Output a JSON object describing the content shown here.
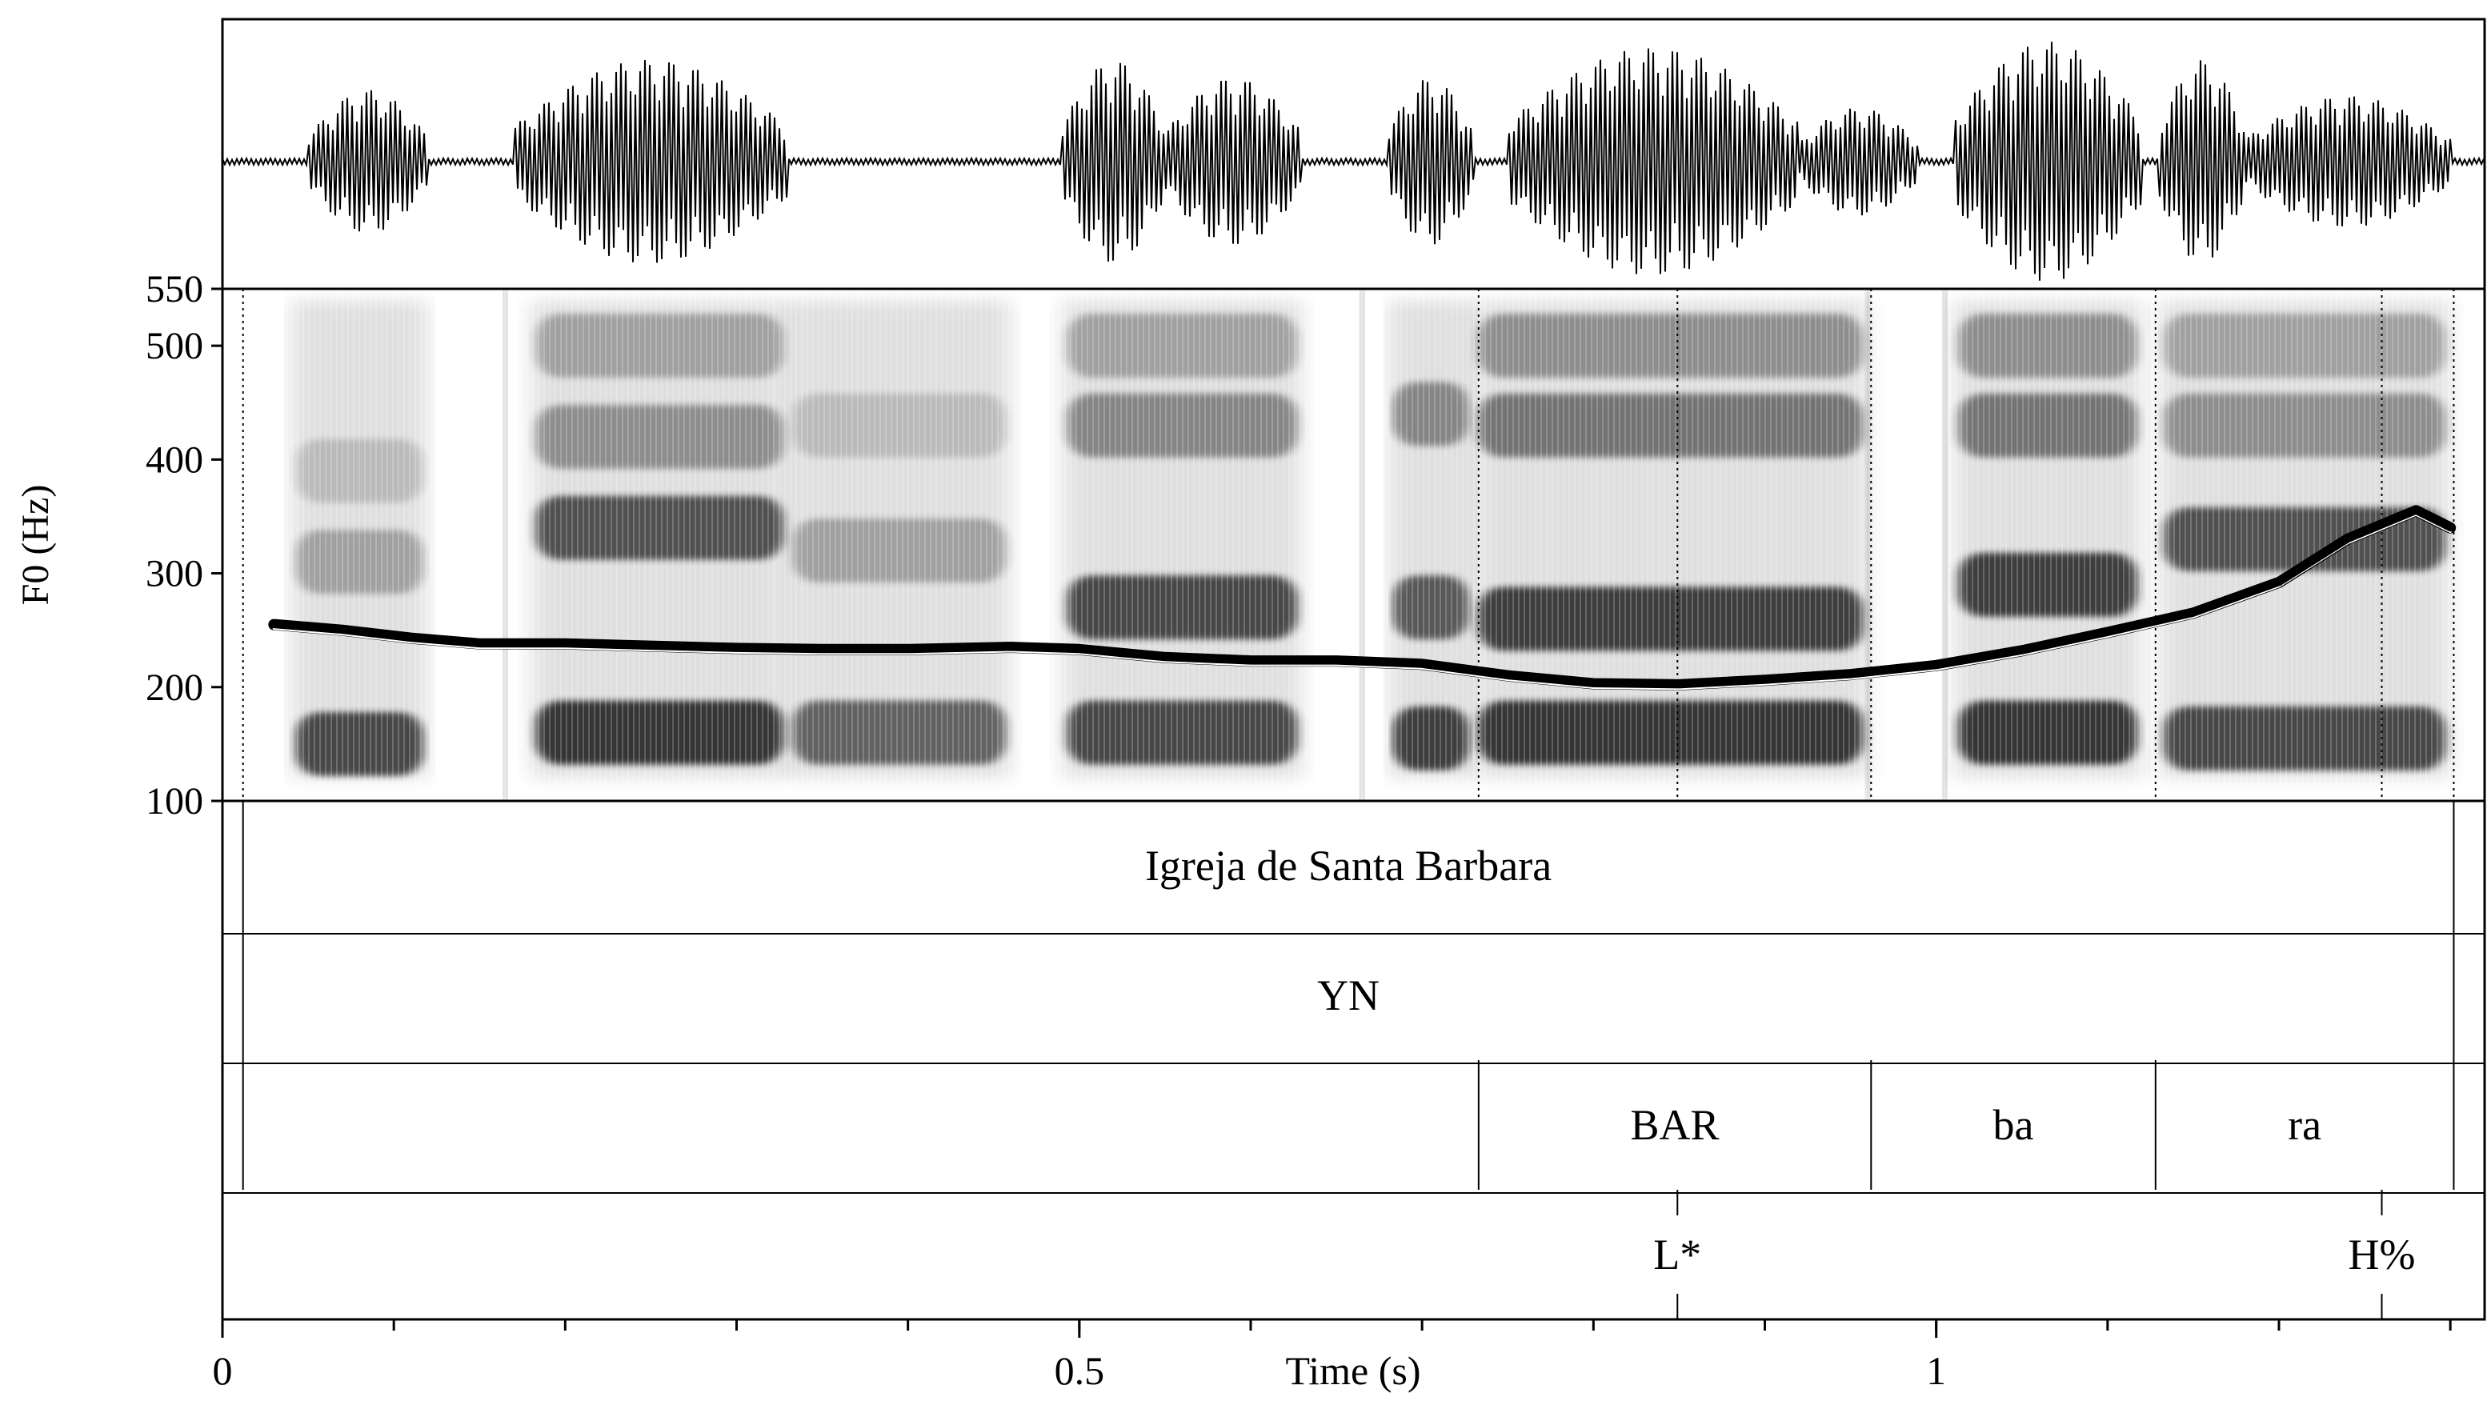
{
  "chart_data": {
    "type": "line",
    "title": "",
    "xlabel": "Time (s)",
    "ylabel": "F0 (Hz)",
    "xlim": [
      0,
      1.32
    ],
    "ylim": [
      100,
      550
    ],
    "x_ticks": [
      {
        "value": 0,
        "label": "0"
      },
      {
        "value": 0.5,
        "label": "0.5"
      },
      {
        "value": 1,
        "label": "1"
      }
    ],
    "y_ticks": [
      {
        "value": 550,
        "label": "550"
      },
      {
        "value": 500,
        "label": "500"
      },
      {
        "value": 400,
        "label": "400"
      },
      {
        "value": 300,
        "label": "300"
      },
      {
        "value": 200,
        "label": "200"
      },
      {
        "value": 100,
        "label": "100"
      }
    ],
    "series": [
      {
        "x": [
          0.03,
          0.07,
          0.11,
          0.15,
          0.2,
          0.25,
          0.3,
          0.35,
          0.4,
          0.46,
          0.5,
          0.55,
          0.6,
          0.65,
          0.7,
          0.75,
          0.8,
          0.85,
          0.9,
          0.95,
          1.0,
          1.05,
          1.1,
          1.15,
          1.2,
          1.24,
          1.28,
          1.3
        ],
        "y": [
          255,
          250,
          243,
          238,
          238,
          236,
          234,
          233,
          233,
          235,
          233,
          226,
          223,
          223,
          220,
          210,
          203,
          202,
          206,
          211,
          219,
          232,
          248,
          265,
          292,
          330,
          355,
          340
        ]
      }
    ],
    "tiers": [
      {
        "intervals": [
          {
            "start": 0.012,
            "end": 1.302,
            "text": "Igreja de Santa Barbara"
          }
        ]
      },
      {
        "intervals": [
          {
            "start": 0.012,
            "end": 1.302,
            "text": "YN"
          }
        ]
      },
      {
        "intervals": [
          {
            "start": 0.012,
            "end": 0.733,
            "text": ""
          },
          {
            "start": 0.733,
            "end": 0.962,
            "text": "BAR"
          },
          {
            "start": 0.962,
            "end": 1.128,
            "text": "ba"
          },
          {
            "start": 1.128,
            "end": 1.302,
            "text": "ra"
          }
        ]
      },
      {
        "points": [
          {
            "time": 0.849,
            "text": "L*"
          },
          {
            "time": 1.26,
            "text": "H%"
          }
        ]
      }
    ]
  }
}
